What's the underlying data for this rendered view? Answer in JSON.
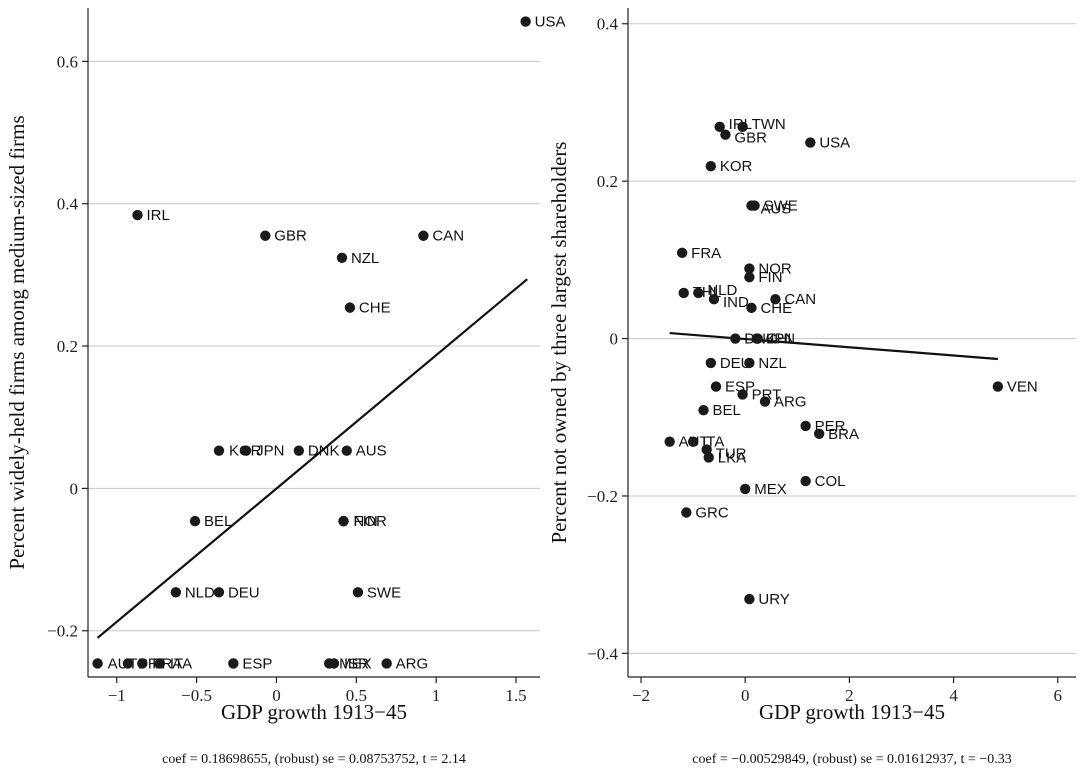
{
  "chart_data": [
    {
      "type": "scatter",
      "xlabel": "GDP growth 1913−45",
      "ylabel": "Percent widely-held firms among medium-sized firms",
      "caption": "coef = 0.18698655, (robust) se = 0.08753752, t = 2.14",
      "xlim": [
        -1.18,
        1.65
      ],
      "ylim": [
        -0.265,
        0.675
      ],
      "xticks": [
        {
          "v": -1,
          "label": "−1"
        },
        {
          "v": -0.5,
          "label": "−0.5"
        },
        {
          "v": 0,
          "label": "0"
        },
        {
          "v": 0.5,
          "label": "0.5"
        },
        {
          "v": 1,
          "label": "1"
        },
        {
          "v": 1.5,
          "label": "1.5"
        }
      ],
      "yticks": [
        {
          "v": -0.2,
          "label": "−0.2"
        },
        {
          "v": 0,
          "label": "0"
        },
        {
          "v": 0.2,
          "label": "0.2"
        },
        {
          "v": 0.4,
          "label": "0.4"
        },
        {
          "v": 0.6,
          "label": "0.6"
        }
      ],
      "grid": true,
      "fit_line": {
        "x": [
          -1.12,
          1.57
        ],
        "y": [
          -0.21,
          0.294
        ]
      },
      "points": [
        {
          "label": "USA",
          "x": 1.56,
          "y": 0.656
        },
        {
          "label": "IRL",
          "x": -0.87,
          "y": 0.384
        },
        {
          "label": "GBR",
          "x": -0.07,
          "y": 0.355
        },
        {
          "label": "CAN",
          "x": 0.92,
          "y": 0.355
        },
        {
          "label": "NZL",
          "x": 0.41,
          "y": 0.324
        },
        {
          "label": "CHE",
          "x": 0.46,
          "y": 0.254
        },
        {
          "label": "KOR",
          "x": -0.36,
          "y": 0.053
        },
        {
          "label": "JPN",
          "x": -0.19,
          "y": 0.053
        },
        {
          "label": "DNK",
          "x": 0.14,
          "y": 0.053
        },
        {
          "label": "AUS",
          "x": 0.44,
          "y": 0.053
        },
        {
          "label": "BEL",
          "x": -0.51,
          "y": -0.046
        },
        {
          "label": "FIN",
          "x": 0.42,
          "y": -0.046
        },
        {
          "label": "NOR",
          "x": 0.42,
          "y": -0.046
        },
        {
          "label": "NLD",
          "x": -0.63,
          "y": -0.146
        },
        {
          "label": "DEU",
          "x": -0.36,
          "y": -0.146
        },
        {
          "label": "SWE",
          "x": 0.51,
          "y": -0.146
        },
        {
          "label": "AUT",
          "x": -1.12,
          "y": -0.246
        },
        {
          "label": "PRT",
          "x": -0.93,
          "y": -0.246
        },
        {
          "label": "FRA",
          "x": -0.84,
          "y": -0.246
        },
        {
          "label": "ITA",
          "x": -0.73,
          "y": -0.246
        },
        {
          "label": "ESP",
          "x": -0.27,
          "y": -0.246
        },
        {
          "label": "MEX",
          "x": 0.33,
          "y": -0.246
        },
        {
          "label": "ISR",
          "x": 0.36,
          "y": -0.246
        },
        {
          "label": "ARG",
          "x": 0.69,
          "y": -0.246
        }
      ]
    },
    {
      "type": "scatter",
      "xlabel": "GDP growth 1913−45",
      "ylabel": "Percent not owned by three largest shareholders",
      "caption": "coef = −0.00529849, (robust) se = 0.01612937, t = −0.33",
      "xlim": [
        -2.25,
        6.35
      ],
      "ylim": [
        -0.43,
        0.42
      ],
      "xticks": [
        {
          "v": -2,
          "label": "−2"
        },
        {
          "v": 0,
          "label": "0"
        },
        {
          "v": 2,
          "label": "2"
        },
        {
          "v": 4,
          "label": "4"
        },
        {
          "v": 6,
          "label": "6"
        }
      ],
      "yticks": [
        {
          "v": -0.4,
          "label": "−0.4"
        },
        {
          "v": -0.2,
          "label": "−0.2"
        },
        {
          "v": 0,
          "label": "0"
        },
        {
          "v": 0.2,
          "label": "0.2"
        },
        {
          "v": 0.4,
          "label": "0.4"
        }
      ],
      "grid": true,
      "fit_line": {
        "x": [
          -1.45,
          4.85
        ],
        "y": 0.007,
        "y2": -0.026
      },
      "points": [
        {
          "label": "IRL",
          "x": -0.49,
          "y": 0.269
        },
        {
          "label": "TWN",
          "x": -0.05,
          "y": 0.269
        },
        {
          "label": "GBR",
          "x": -0.38,
          "y": 0.259
        },
        {
          "label": "USA",
          "x": 1.25,
          "y": 0.249
        },
        {
          "label": "KOR",
          "x": -0.66,
          "y": 0.219
        },
        {
          "label": "AUS",
          "x": 0.12,
          "y": 0.169
        },
        {
          "label": "SWE",
          "x": 0.18,
          "y": 0.169
        },
        {
          "label": "FRA",
          "x": -1.21,
          "y": 0.109
        },
        {
          "label": "NOR",
          "x": 0.08,
          "y": 0.089
        },
        {
          "label": "FIN",
          "x": 0.08,
          "y": 0.078
        },
        {
          "label": "THL",
          "x": -1.18,
          "y": 0.058
        },
        {
          "label": "NLD",
          "x": -0.9,
          "y": 0.058
        },
        {
          "label": "IND",
          "x": -0.6,
          "y": 0.05
        },
        {
          "label": "CAN",
          "x": 0.58,
          "y": 0.05
        },
        {
          "label": "CHE",
          "x": 0.12,
          "y": 0.039
        },
        {
          "label": "DNK",
          "x": -0.19,
          "y": 0.0
        },
        {
          "label": "JPN",
          "x": 0.24,
          "y": 0.0
        },
        {
          "label": "CHL",
          "x": 0.22,
          "y": 0.0
        },
        {
          "label": "DEU",
          "x": -0.66,
          "y": -0.031
        },
        {
          "label": "NZL",
          "x": 0.08,
          "y": -0.031
        },
        {
          "label": "ESP",
          "x": -0.56,
          "y": -0.061
        },
        {
          "label": "PRT",
          "x": -0.05,
          "y": -0.071
        },
        {
          "label": "ARG",
          "x": 0.38,
          "y": -0.08
        },
        {
          "label": "BEL",
          "x": -0.8,
          "y": -0.091
        },
        {
          "label": "PER",
          "x": 1.16,
          "y": -0.111
        },
        {
          "label": "BRA",
          "x": 1.42,
          "y": -0.121
        },
        {
          "label": "AUT",
          "x": -1.45,
          "y": -0.131
        },
        {
          "label": "ITA",
          "x": -1.0,
          "y": -0.131
        },
        {
          "label": "TUR",
          "x": -0.74,
          "y": -0.141
        },
        {
          "label": "LKA",
          "x": -0.7,
          "y": -0.151
        },
        {
          "label": "COL",
          "x": 1.16,
          "y": -0.181
        },
        {
          "label": "MEX",
          "x": 0.0,
          "y": -0.191
        },
        {
          "label": "GRC",
          "x": -1.13,
          "y": -0.221
        },
        {
          "label": "URY",
          "x": 0.08,
          "y": -0.331
        },
        {
          "label": "VEN",
          "x": 4.85,
          "y": -0.061
        }
      ]
    }
  ]
}
